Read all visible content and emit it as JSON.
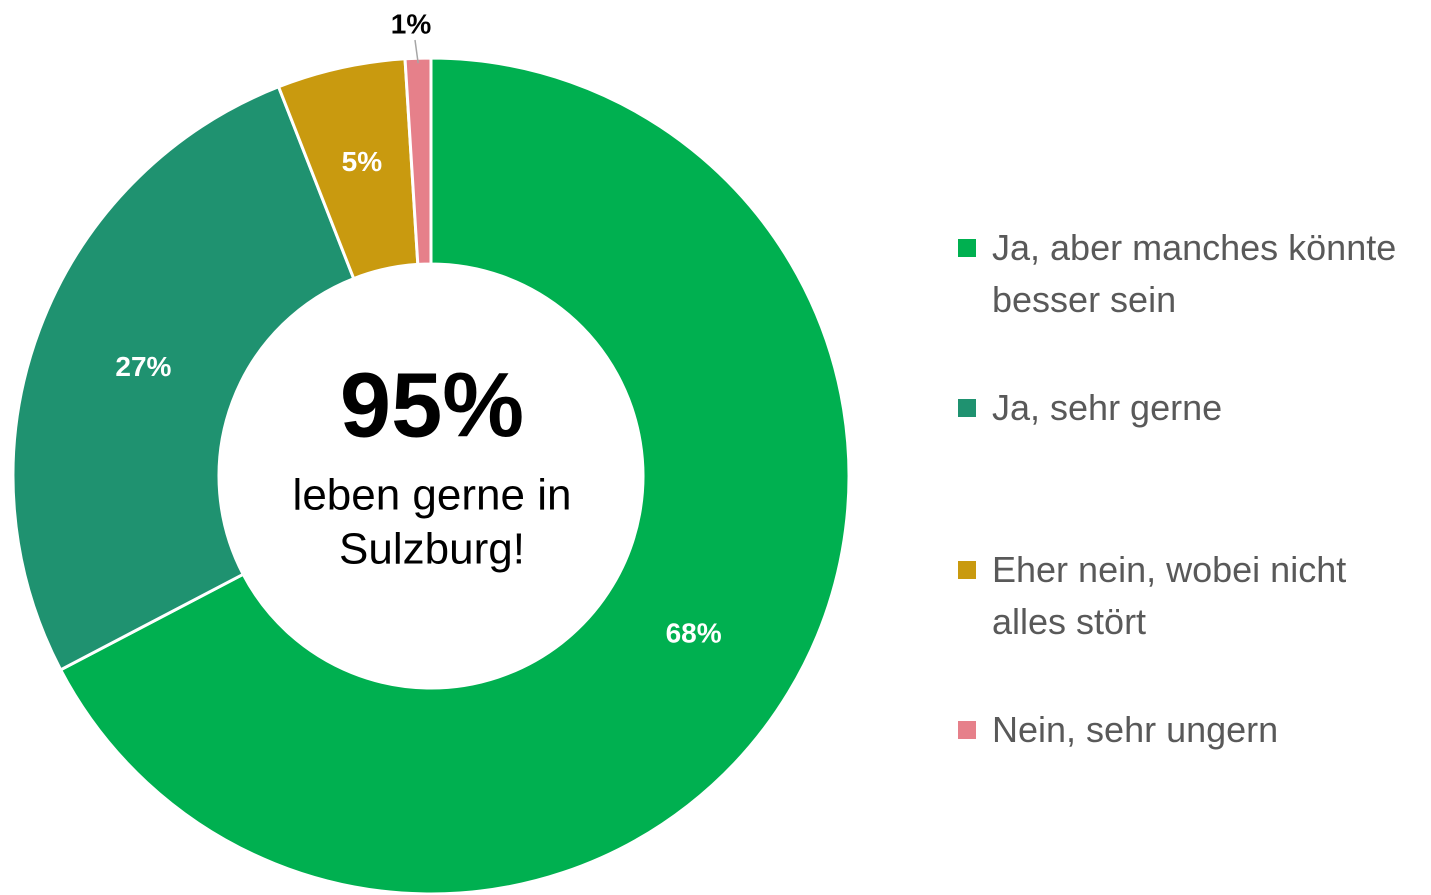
{
  "chart_data": {
    "type": "donut",
    "center_label": "95%",
    "center_text": [
      "leben gerne in",
      "Sulzburg!"
    ],
    "categories": [
      "Ja, aber manches könnte besser sein",
      "Ja, sehr gerne",
      "Eher nein, wobei nicht alles stört",
      "Nein, sehr ungern"
    ],
    "values": [
      68,
      27,
      5,
      1
    ],
    "value_labels": [
      "68%",
      "27%",
      "5%",
      "1%"
    ],
    "colors": [
      "#00b050",
      "#1f9270",
      "#c99a0f",
      "#e6808a"
    ],
    "legend": "right"
  }
}
